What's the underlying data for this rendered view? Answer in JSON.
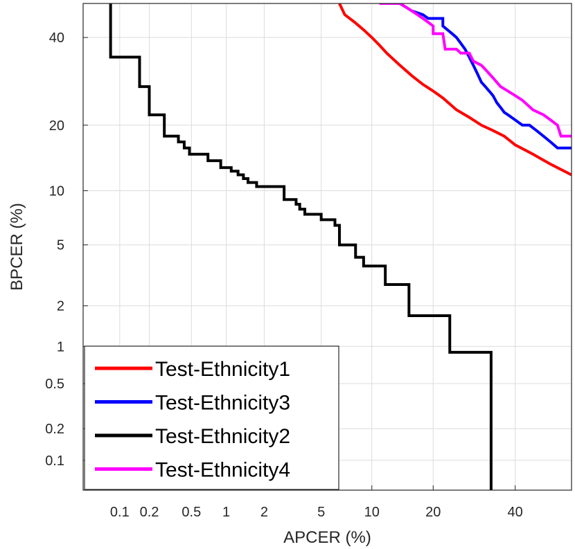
{
  "chart_data": {
    "type": "line",
    "title": "",
    "xlabel": "APCER (%)",
    "ylabel": "BPCER (%)",
    "xscale": "probit",
    "yscale": "probit",
    "xlim": [
      0.04,
      56
    ],
    "ylim": [
      0.05,
      49
    ],
    "xticks": [
      0.1,
      0.2,
      0.5,
      1,
      2,
      5,
      10,
      20,
      40
    ],
    "xtick_labels": [
      "0.1",
      "0.2",
      "0.5",
      "1",
      "2",
      "5",
      "10",
      "20",
      "40"
    ],
    "yticks": [
      0.1,
      0.2,
      0.5,
      1,
      2,
      5,
      10,
      20,
      40
    ],
    "ytick_labels": [
      "0.1",
      "0.2",
      "0.5",
      "1",
      "2",
      "5",
      "10",
      "20",
      "40"
    ],
    "grid": true,
    "legend_position": "bottom-left",
    "series": [
      {
        "name": "Test-Ethnicity1",
        "color": "#ff0000",
        "x": [
          6.5,
          7,
          8,
          9,
          10,
          11,
          12,
          14,
          16,
          18,
          20,
          22,
          25,
          28,
          31,
          34,
          37,
          40,
          45,
          50,
          56
        ],
        "y": [
          49,
          46,
          44,
          42,
          40,
          38,
          36,
          33,
          30.5,
          28.5,
          27,
          25.5,
          23,
          21.5,
          20,
          19,
          18,
          16.5,
          15,
          13.5,
          12
        ]
      },
      {
        "name": "Test-Ethnicity3",
        "color": "#0000ff",
        "x": [
          11,
          14,
          15,
          16,
          18,
          19,
          22,
          22,
          24,
          25,
          26,
          27,
          28,
          29,
          30,
          31,
          32,
          33,
          34,
          35,
          36,
          37,
          38,
          40,
          42,
          44,
          46,
          48,
          50,
          52,
          54,
          56
        ],
        "y": [
          49,
          49,
          48,
          47,
          46,
          45,
          45,
          43,
          41,
          40,
          38.5,
          37,
          35,
          33,
          31,
          29,
          28,
          27,
          26,
          24.5,
          23.5,
          22.5,
          22,
          21,
          20,
          20,
          19,
          18,
          17,
          16,
          16,
          16
        ]
      },
      {
        "name": "Test-Ethnicity4",
        "color": "#ff00ff",
        "x": [
          11,
          14,
          15,
          16,
          17,
          18,
          19,
          20,
          20,
          22,
          22.5,
          25,
          26,
          28,
          29,
          31,
          32,
          34,
          36,
          38,
          40,
          42,
          45,
          48,
          50,
          52,
          53,
          56
        ],
        "y": [
          49,
          49,
          48,
          47,
          46,
          45,
          44,
          43,
          41,
          41,
          37,
          37,
          36,
          36,
          34,
          33,
          32,
          30,
          28,
          27,
          26,
          25,
          23,
          22,
          21,
          20,
          18,
          18
        ]
      },
      {
        "name": "Test-Ethnicity2",
        "color": "#000000",
        "x": [
          0.08,
          0.08,
          0.16,
          0.16,
          0.2,
          0.2,
          0.28,
          0.28,
          0.38,
          0.38,
          0.43,
          0.43,
          0.48,
          0.48,
          0.7,
          0.7,
          0.9,
          0.9,
          1.1,
          1.1,
          1.25,
          1.25,
          1.38,
          1.38,
          1.5,
          1.5,
          1.75,
          1.75,
          2.8,
          2.8,
          3.4,
          3.4,
          3.6,
          3.6,
          3.9,
          3.9,
          5,
          5,
          6.1,
          6.1,
          6.5,
          6.5,
          8.1,
          8.1,
          9,
          9,
          11.8,
          11.8,
          15.5,
          15.5,
          23.5,
          23.5,
          33.5,
          33.5
        ],
        "y": [
          49,
          35,
          35,
          28,
          28,
          22,
          22,
          18,
          18,
          17,
          17,
          16,
          16,
          15,
          15,
          14,
          14,
          13,
          13,
          12.5,
          12.5,
          12,
          12,
          11.5,
          11.5,
          11,
          11,
          10.5,
          10.5,
          9,
          9,
          8.5,
          8.5,
          8,
          8,
          7.5,
          7.5,
          7,
          7,
          6.5,
          6.5,
          5,
          5,
          4.2,
          4.2,
          3.7,
          3.7,
          2.8,
          2.8,
          1.7,
          1.7,
          0.9,
          0.9,
          0.05
        ]
      }
    ]
  }
}
